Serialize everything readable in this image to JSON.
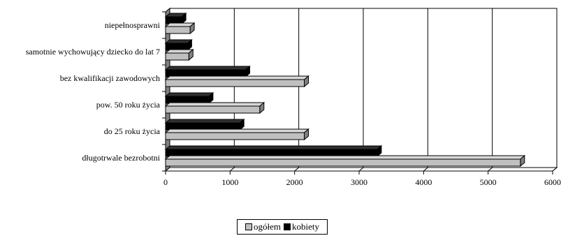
{
  "chart_data": {
    "type": "bar",
    "orientation": "horizontal",
    "style": "3d",
    "categories": [
      "niepełnosprawni",
      "samotnie wychowujący dziecko do lat 7",
      "bez kwalifikacji zawodowych",
      "pow. 50 roku życia",
      "do 25 roku życia",
      "długotrwale bezrobotni"
    ],
    "series": [
      {
        "name": "ogółem",
        "color": "#c0c0c0",
        "values": [
          380,
          360,
          2150,
          1460,
          2150,
          5500
        ]
      },
      {
        "name": "kobiety",
        "color": "#000000",
        "values": [
          250,
          340,
          1240,
          670,
          1150,
          3280
        ]
      }
    ],
    "xlim": [
      0,
      6000
    ],
    "xticks": [
      "0",
      "1000",
      "2000",
      "3000",
      "4000",
      "5000",
      "6000"
    ],
    "grid": true,
    "legend_position": "bottom-center"
  },
  "legend": {
    "items": [
      {
        "label": "ogółem",
        "color": "#c0c0c0"
      },
      {
        "label": "kobiety",
        "color": "#000000"
      }
    ]
  }
}
